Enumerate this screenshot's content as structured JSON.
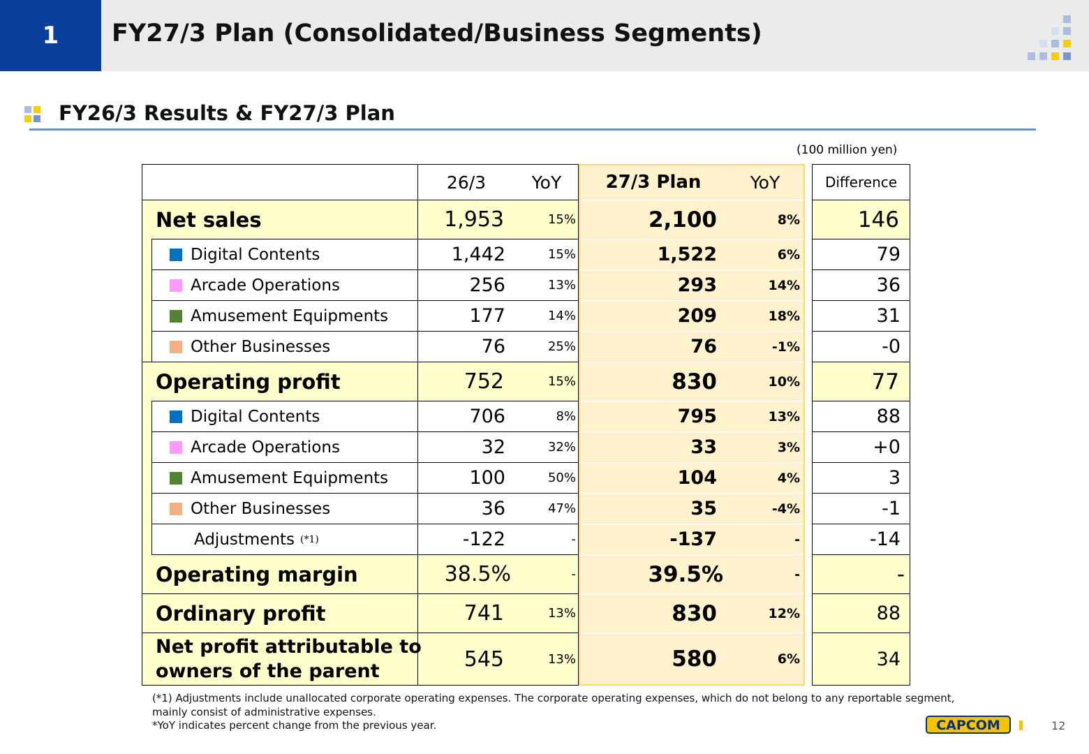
{
  "header": {
    "section_number": "1",
    "title": "FY27/3 Plan (Consolidated/Business Segments)"
  },
  "subheader": {
    "title": "FY26/3 Results & FY27/3 Plan"
  },
  "unit_note": "(100 million yen)",
  "table": {
    "columns": {
      "actual": "26/3",
      "actual_yoy": "YoY",
      "plan": "27/3 Plan",
      "plan_yoy": "YoY",
      "difference": "Difference"
    },
    "rows": [
      {
        "label": "Net sales",
        "actual": "1,953",
        "actual_yoy": "15%",
        "plan": "2,100",
        "plan_yoy": "8%",
        "diff": "146"
      },
      {
        "label": "Digital Contents",
        "marker": "#0070c0",
        "actual": "1,442",
        "actual_yoy": "15%",
        "plan": "1,522",
        "plan_yoy": "6%",
        "diff": "79"
      },
      {
        "label": "Arcade Operations",
        "marker": "#ff99ff",
        "actual": "256",
        "actual_yoy": "13%",
        "plan": "293",
        "plan_yoy": "14%",
        "diff": "36"
      },
      {
        "label": "Amusement Equipments",
        "marker": "#548235",
        "actual": "177",
        "actual_yoy": "14%",
        "plan": "209",
        "plan_yoy": "18%",
        "diff": "31"
      },
      {
        "label": "Other Businesses",
        "marker": "#f4b183",
        "actual": "76",
        "actual_yoy": "25%",
        "plan": "76",
        "plan_yoy": "-1%",
        "diff": "-0"
      },
      {
        "label": "Operating profit",
        "actual": "752",
        "actual_yoy": "15%",
        "plan": "830",
        "plan_yoy": "10%",
        "diff": "77"
      },
      {
        "label": "Digital Contents",
        "marker": "#0070c0",
        "actual": "706",
        "actual_yoy": "8%",
        "plan": "795",
        "plan_yoy": "13%",
        "diff": "88"
      },
      {
        "label": "Arcade Operations",
        "marker": "#ff99ff",
        "actual": "32",
        "actual_yoy": "32%",
        "plan": "33",
        "plan_yoy": "3%",
        "diff": "+0"
      },
      {
        "label": "Amusement Equipments",
        "marker": "#548235",
        "actual": "100",
        "actual_yoy": "50%",
        "plan": "104",
        "plan_yoy": "4%",
        "diff": "3"
      },
      {
        "label": "Other Businesses",
        "marker": "#f4b183",
        "actual": "36",
        "actual_yoy": "47%",
        "plan": "35",
        "plan_yoy": "-4%",
        "diff": "-1"
      },
      {
        "label": "Adjustments",
        "note": "(*1)",
        "actual": "-122",
        "actual_yoy": "-",
        "plan": "-137",
        "plan_yoy": "-",
        "diff": "-14"
      },
      {
        "label": "Operating margin",
        "actual": "38.5%",
        "actual_yoy": "-",
        "plan": "39.5%",
        "plan_yoy": "-",
        "diff": "-"
      },
      {
        "label": "Ordinary profit",
        "actual": "741",
        "actual_yoy": "13%",
        "plan": "830",
        "plan_yoy": "12%",
        "diff": "88"
      },
      {
        "label_line1": "Net profit attributable to",
        "label_line2": "owners of the parent",
        "actual": "545",
        "actual_yoy": "13%",
        "plan": "580",
        "plan_yoy": "6%",
        "diff": "34"
      }
    ]
  },
  "footnotes": {
    "line1": "(*1) Adjustments include unallocated corporate operating expenses. The corporate operating expenses, which do not belong to any reportable segment,",
    "line2": "mainly consist of administrative expenses.",
    "line3": "*YoY indicates percent change from the previous year."
  },
  "footer": {
    "logo_text": "CAPCOM",
    "page_number": "12"
  },
  "colors": {
    "header_blue": "#0a3f9c",
    "highlight_yellow": "#ffffcc",
    "plan_bg": "#fff2cc",
    "plan_border": "#ffd966",
    "rule_blue": "#6d8fc5"
  }
}
